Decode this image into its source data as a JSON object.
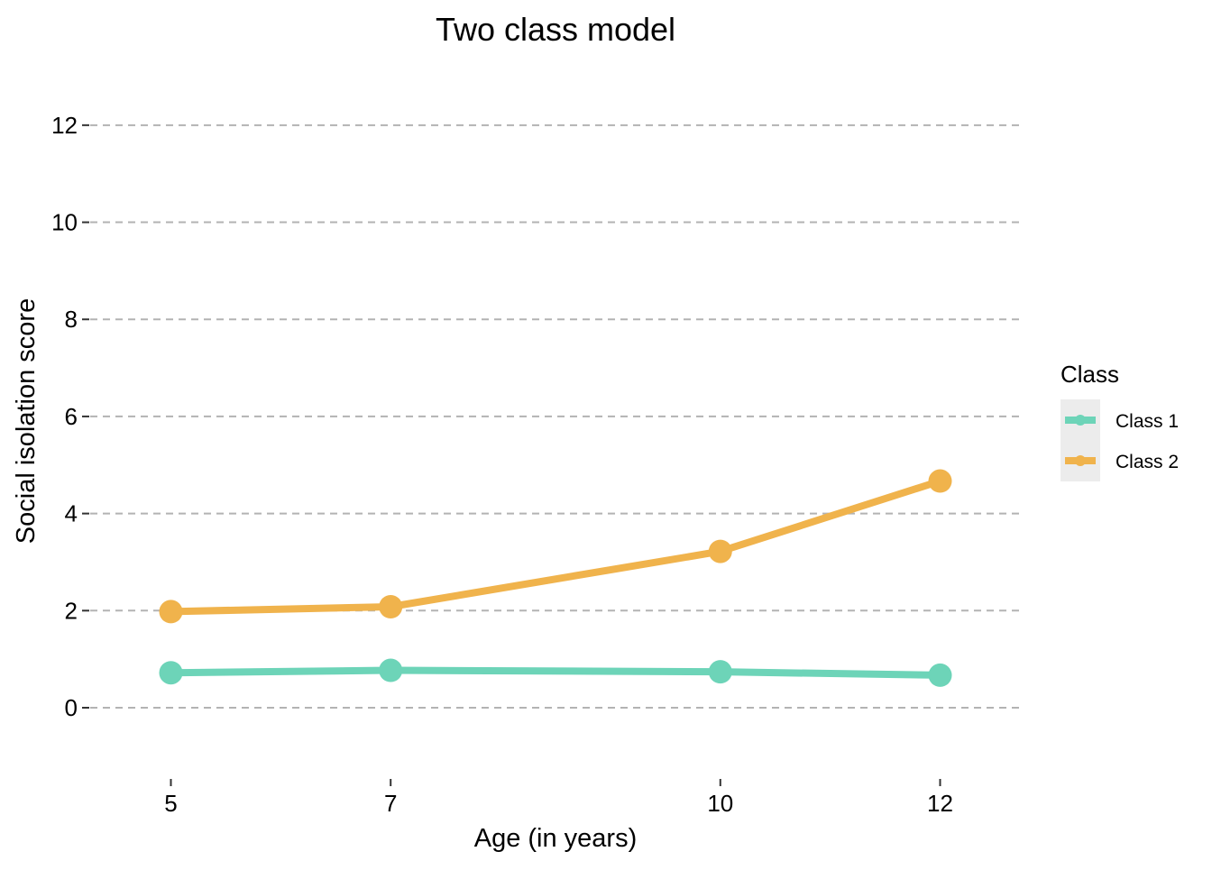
{
  "chart_data": {
    "type": "line",
    "title": "Two class model",
    "xlabel": "Age (in years)",
    "ylabel": "Social isolation score",
    "x": [
      5,
      7,
      10,
      12
    ],
    "x_tick_labels": [
      "5",
      "7",
      "10",
      "12"
    ],
    "y_ticks": [
      0,
      2,
      4,
      6,
      8,
      10,
      12
    ],
    "y_tick_labels": [
      "0",
      "2",
      "4",
      "6",
      "8",
      "10",
      "12"
    ],
    "xlim": [
      4.2,
      12.8
    ],
    "ylim": [
      -1.3,
      13.0
    ],
    "grid": "horizontal dashed",
    "legend": {
      "title": "Class",
      "placement": "right",
      "background": "#ececec"
    },
    "series": [
      {
        "name": "Class 1",
        "color": "#6dd4b8",
        "values": [
          0.72,
          0.77,
          0.74,
          0.67
        ]
      },
      {
        "name": "Class 2",
        "color": "#f0b34c",
        "values": [
          1.98,
          2.08,
          3.22,
          4.67
        ]
      }
    ]
  }
}
